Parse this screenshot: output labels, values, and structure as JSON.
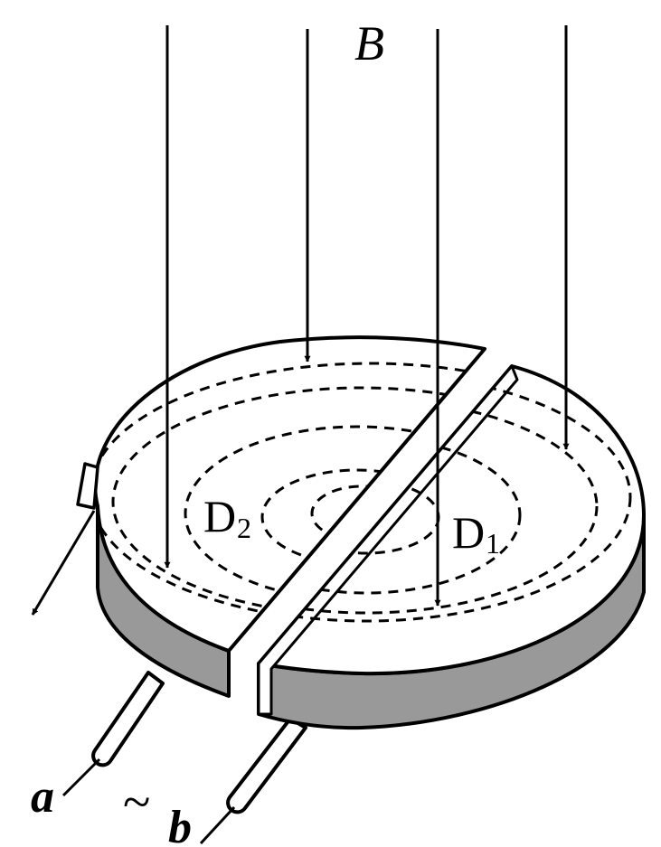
{
  "figure": {
    "field_label": "B",
    "dee_left": {
      "letter": "D",
      "subscript": "2"
    },
    "dee_right": {
      "letter": "D",
      "subscript": "1"
    },
    "terminal_a": "a",
    "terminal_b": "b",
    "ac_symbol": "~"
  },
  "colors": {
    "stroke": "#000000",
    "top_face": "#ffffff",
    "side_face": "#999999",
    "background": "#ffffff"
  }
}
